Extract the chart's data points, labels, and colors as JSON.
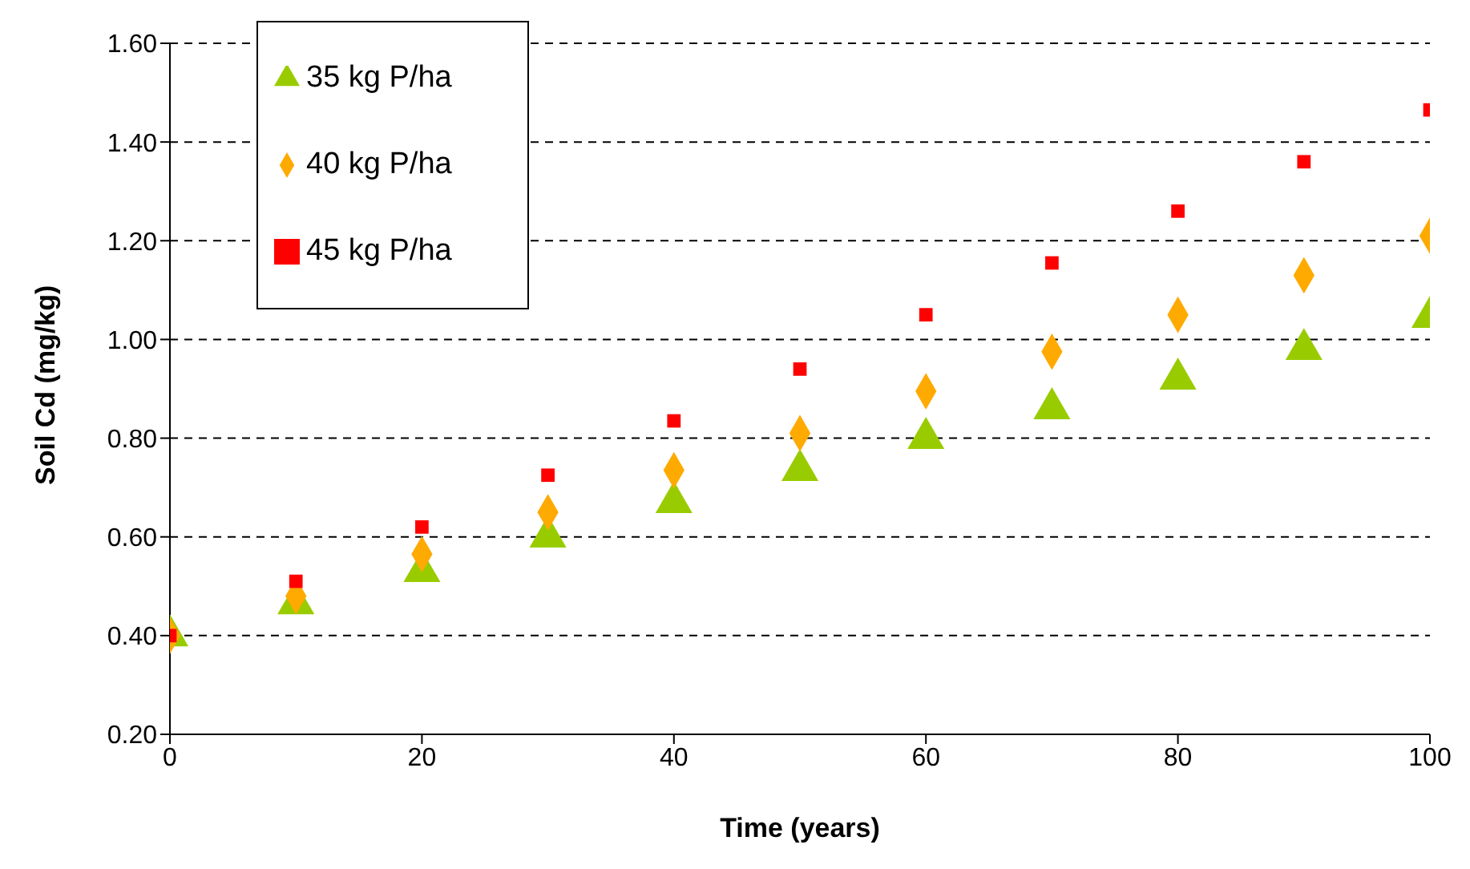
{
  "chart_data": {
    "type": "scatter",
    "xlabel": "Time (years)",
    "ylabel": "Soil Cd (mg/kg)",
    "x": [
      0,
      10,
      20,
      30,
      40,
      50,
      60,
      70,
      80,
      90,
      100
    ],
    "series": [
      {
        "name": "35 kg P/ha",
        "color": "#99cc00",
        "marker": "triangle",
        "values": [
          0.4,
          0.465,
          0.53,
          0.6,
          0.67,
          0.735,
          0.8,
          0.86,
          0.92,
          0.98,
          1.045
        ]
      },
      {
        "name": "40 kg P/ha",
        "color": "#ffaa00",
        "marker": "diamond",
        "values": [
          0.4,
          0.48,
          0.565,
          0.65,
          0.735,
          0.81,
          0.895,
          0.975,
          1.05,
          1.13,
          1.21
        ]
      },
      {
        "name": "45 kg P/ha",
        "color": "#ff0000",
        "marker": "square",
        "values": [
          0.4,
          0.51,
          0.62,
          0.725,
          0.835,
          0.94,
          1.05,
          1.155,
          1.26,
          1.36,
          1.465
        ]
      }
    ],
    "xlim": [
      0,
      100
    ],
    "xticks": [
      0,
      20,
      40,
      60,
      80,
      100
    ],
    "ylim": [
      0.2,
      1.6
    ],
    "yticks": [
      {
        "value": 0.2,
        "label": "0.20"
      },
      {
        "value": 0.4,
        "label": "0.40"
      },
      {
        "value": 0.6,
        "label": "0.60"
      },
      {
        "value": 0.8,
        "label": "0.80"
      },
      {
        "value": 1.0,
        "label": "1.00"
      },
      {
        "value": 1.2,
        "label": "1.20"
      },
      {
        "value": 1.4,
        "label": "1.40"
      },
      {
        "value": 1.6,
        "label": "1.60"
      }
    ],
    "grid": "y",
    "legend": "top left"
  }
}
